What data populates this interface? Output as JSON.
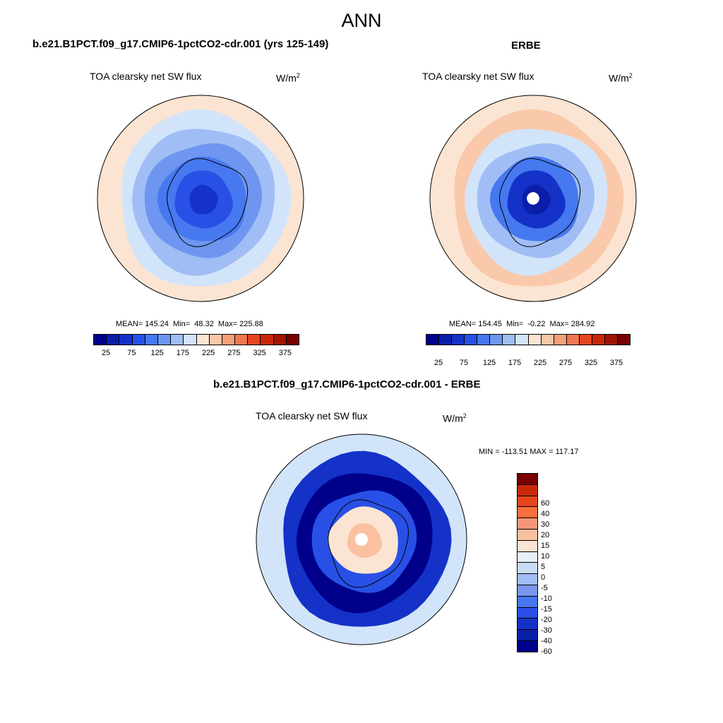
{
  "figure": {
    "title": "ANN"
  },
  "panels": [
    {
      "title": "b.e21.B1PCT.f09_g17.CMIP6-1pctCO2-cdr.001 (yrs 125-149)",
      "variable": "TOA clearsky net SW flux",
      "units": "W/m",
      "units_sup": "2",
      "stats": "MEAN= 145.24  Min=  48.32  Max= 225.88"
    },
    {
      "title": "ERBE",
      "variable": "TOA clearsky net SW flux",
      "units": "W/m",
      "units_sup": "2",
      "stats": "MEAN= 154.45  Min=  -0.22  Max= 284.92"
    },
    {
      "title": "b.e21.B1PCT.f09_g17.CMIP6-1pctCO2-cdr.001 - ERBE",
      "variable": "TOA clearsky net SW flux",
      "units": "W/m",
      "units_sup": "2",
      "stats": "MIN = -113.51 MAX = 117.17"
    }
  ],
  "colorbar_abs": {
    "colors": [
      "#00008b",
      "#0a1ea8",
      "#1432c8",
      "#2850e6",
      "#4678f0",
      "#6e96f0",
      "#a0bef5",
      "#d2e4fa",
      "#fce4d2",
      "#fac8aa",
      "#f5a078",
      "#f07850",
      "#e6461e",
      "#c8280a",
      "#a01405",
      "#780000"
    ],
    "tick_labels": [
      "25",
      "75",
      "125",
      "175",
      "225",
      "275",
      "325",
      "375"
    ]
  },
  "colorbar_diff": {
    "colors": [
      "#780000",
      "#c8280a",
      "#e6461e",
      "#fa6e3c",
      "#f59678",
      "#fac0a0",
      "#fce4d2",
      "#e6f0fa",
      "#c8dcf5",
      "#a0bef5",
      "#7896f0",
      "#4678f0",
      "#2850e6",
      "#1432c8",
      "#0a1ea8",
      "#00008b"
    ],
    "tick_labels": [
      "60",
      "40",
      "30",
      "20",
      "15",
      "10",
      "5",
      "0",
      "-5",
      "-10",
      "-15",
      "-20",
      "-30",
      "-40",
      "-60"
    ]
  },
  "maps": {
    "model_ring_colors": [
      "#fce4d2",
      "#d2e4fa",
      "#a0bef5",
      "#6e96f0",
      "#4678f0",
      "#2850e6",
      "#1432c8"
    ],
    "obs_ring_colors": [
      "#fce4d2",
      "#fac8aa",
      "#d2e4fa",
      "#a0bef5",
      "#4678f0",
      "#1432c8",
      "#0a1ea8"
    ],
    "diff_ring_colors": [
      "#d2e4fa",
      "#1432c8",
      "#00008b",
      "#2850e6",
      "#fce4d2",
      "#fac0a0"
    ]
  }
}
